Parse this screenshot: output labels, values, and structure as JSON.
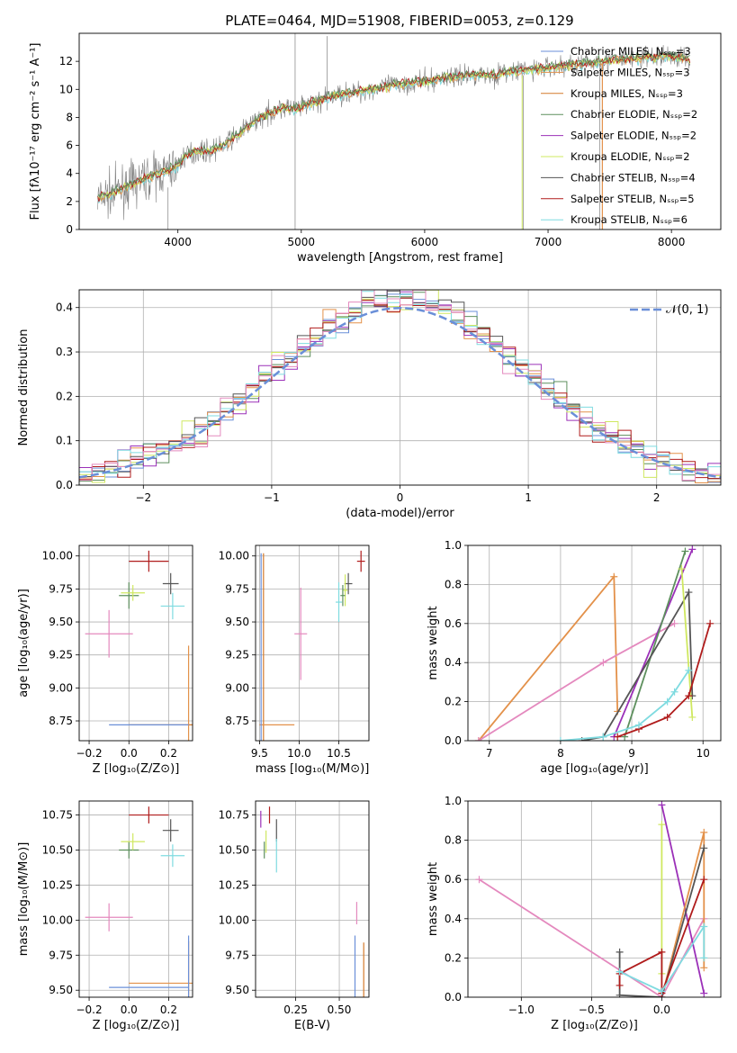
{
  "figure": {
    "title": "PLATE=0464, MJD=51908, FIBERID=0053, z=0.129"
  },
  "palette": {
    "data_gray": "#808080",
    "chabrier_miles": "#6a8fd8",
    "salpeter_miles": "#e3914a",
    "kroupa_miles": "#d47a2b",
    "chabrier_elodie": "#5d8f5d",
    "salpeter_elodie": "#9b30b8",
    "kroupa_elodie": "#cfe860",
    "chabrier_stelib": "#555555",
    "salpeter_stelib": "#b01c1c",
    "kroupa_stelib": "#7fdbe0",
    "pink": "#e489be",
    "normal_curve": "#6a8fd8"
  },
  "chart_data": [
    {
      "id": "spectrum",
      "type": "line",
      "xlabel": "wavelength [Angstrom, rest frame]",
      "ylabel": "Flux [fλ10⁻¹⁷ erg cm⁻² s⁻¹ A⁻¹]",
      "xlim": [
        3200,
        8400
      ],
      "ylim": [
        0,
        14
      ],
      "xticks": [
        "4000",
        "5000",
        "6000",
        "7000",
        "8000"
      ],
      "yticks": [
        "0",
        "2",
        "4",
        "6",
        "8",
        "10",
        "12"
      ],
      "grid": false,
      "legend_position": "upper-right",
      "legend": [
        {
          "label": "Chabrier MILES, Nₛₛₚ=3",
          "color": "chabrier_miles"
        },
        {
          "label": "Salpeter MILES, Nₛₛₚ=3",
          "color": "salpeter_miles"
        },
        {
          "label": "Kroupa MILES, Nₛₛₚ=3",
          "color": "kroupa_miles"
        },
        {
          "label": "Chabrier ELODIE, Nₛₛₚ=2",
          "color": "chabrier_elodie"
        },
        {
          "label": "Salpeter ELODIE, Nₛₛₚ=2",
          "color": "salpeter_elodie"
        },
        {
          "label": "Kroupa ELODIE, Nₛₛₚ=2",
          "color": "kroupa_elodie"
        },
        {
          "label": "Chabrier STELIB, Nₛₛₚ=4",
          "color": "chabrier_stelib"
        },
        {
          "label": "Salpeter STELIB, Nₛₛₚ=5",
          "color": "salpeter_stelib"
        },
        {
          "label": "Kroupa STELIB, Nₛₛₚ=6",
          "color": "kroupa_stelib"
        }
      ],
      "continuum": [
        [
          3350,
          2.2
        ],
        [
          3450,
          2.5
        ],
        [
          3550,
          2.9
        ],
        [
          3650,
          3.3
        ],
        [
          3750,
          3.7
        ],
        [
          3850,
          4.0
        ],
        [
          3950,
          4.3
        ],
        [
          4000,
          4.6
        ],
        [
          4050,
          5.2
        ],
        [
          4150,
          5.6
        ],
        [
          4250,
          5.6
        ],
        [
          4350,
          5.9
        ],
        [
          4450,
          6.5
        ],
        [
          4550,
          7.2
        ],
        [
          4650,
          7.9
        ],
        [
          4750,
          8.3
        ],
        [
          4850,
          8.7
        ],
        [
          4950,
          8.6
        ],
        [
          5050,
          8.9
        ],
        [
          5150,
          9.2
        ],
        [
          5250,
          9.5
        ],
        [
          5350,
          9.7
        ],
        [
          5450,
          9.8
        ],
        [
          5550,
          10.0
        ],
        [
          5650,
          10.1
        ],
        [
          5750,
          10.3
        ],
        [
          5850,
          10.4
        ],
        [
          5950,
          10.5
        ],
        [
          6050,
          10.6
        ],
        [
          6150,
          10.8
        ],
        [
          6250,
          10.9
        ],
        [
          6350,
          11.0
        ],
        [
          6450,
          11.1
        ],
        [
          6550,
          11.0
        ],
        [
          6650,
          11.2
        ],
        [
          6750,
          11.3
        ],
        [
          6850,
          11.4
        ],
        [
          6950,
          11.5
        ],
        [
          7050,
          11.6
        ],
        [
          7150,
          11.7
        ],
        [
          7250,
          11.8
        ],
        [
          7350,
          11.9
        ],
        [
          7450,
          12.0
        ],
        [
          7550,
          12.1
        ],
        [
          7650,
          12.2
        ],
        [
          7750,
          12.2
        ],
        [
          7850,
          12.3
        ],
        [
          7950,
          12.4
        ],
        [
          8050,
          12.3
        ],
        [
          8150,
          12.2
        ]
      ]
    },
    {
      "id": "residuals",
      "type": "step",
      "xlabel": "(data-model)/error",
      "ylabel": "Normed distribution",
      "xlim": [
        -2.5,
        2.5
      ],
      "ylim": [
        0,
        0.44
      ],
      "xticks": [
        "−2",
        "−1",
        "0",
        "1",
        "2"
      ],
      "yticks": [
        "0.0",
        "0.1",
        "0.2",
        "0.3",
        "0.4"
      ],
      "grid": true,
      "legend_position": "upper-right",
      "legend": [
        {
          "label": "𝒩(0, 1)",
          "color": "normal_curve"
        }
      ],
      "model": "N(0,1)"
    },
    {
      "id": "age_vs_z",
      "type": "errorbar",
      "xlabel": "Z [log₁₀(Z/Z⊙)]",
      "ylabel": "age  [log₁₀(age/yr)]",
      "xlim": [
        -0.25,
        0.32
      ],
      "ylim": [
        8.6,
        10.08
      ],
      "xticks": [
        "−0.2",
        "0.0",
        "0.2"
      ],
      "yticks": [
        "8.75",
        "9.00",
        "9.25",
        "9.50",
        "9.75",
        "10.00"
      ],
      "grid": true,
      "points": [
        {
          "x": 0.1,
          "y": 9.96,
          "xe": 0.1,
          "ye": 0.08,
          "c": "salpeter_stelib"
        },
        {
          "x": 0.21,
          "y": 9.79,
          "xe": 0.04,
          "ye": 0.08,
          "c": "chabrier_stelib"
        },
        {
          "x": 0.22,
          "y": 9.62,
          "xe": 0.06,
          "ye": 0.1,
          "c": "kroupa_stelib"
        },
        {
          "x": 0.0,
          "y": 9.7,
          "xe": 0.05,
          "ye": 0.1,
          "c": "chabrier_elodie"
        },
        {
          "x": 0.02,
          "y": 9.72,
          "xe": 0.06,
          "ye": 0.06,
          "c": "kroupa_elodie"
        },
        {
          "x": -0.1,
          "y": 9.41,
          "xe": 0.12,
          "ye": 0.18,
          "c": "pink"
        },
        {
          "x": 0.3,
          "y": 8.72,
          "xe": 0.3,
          "ye": 0.0,
          "c": "kroupa_miles"
        },
        {
          "x": 0.3,
          "y": 8.72,
          "xe": 0.0,
          "ye": 0.6,
          "c": "salpeter_miles"
        },
        {
          "x": 0.1,
          "y": 8.72,
          "xe": 0.2,
          "ye": 0.0,
          "c": "chabrier_miles"
        }
      ]
    },
    {
      "id": "age_vs_mass",
      "type": "errorbar",
      "xlabel": "mass [log₁₀(M/M⊙)]",
      "ylabel": "",
      "xlim": [
        9.45,
        10.88
      ],
      "ylim": [
        8.6,
        10.08
      ],
      "xticks": [
        "9.5",
        "10.0",
        "10.5"
      ],
      "yticks": [
        "8.75",
        "9.00",
        "9.25",
        "9.50",
        "9.75",
        "10.00"
      ],
      "grid": true,
      "points": [
        {
          "x": 10.78,
          "y": 9.96,
          "xe": 0.05,
          "ye": 0.08,
          "c": "salpeter_stelib"
        },
        {
          "x": 10.62,
          "y": 9.79,
          "xe": 0.05,
          "ye": 0.08,
          "c": "chabrier_stelib"
        },
        {
          "x": 10.5,
          "y": 9.65,
          "xe": 0.04,
          "ye": 0.15,
          "c": "kroupa_stelib"
        },
        {
          "x": 10.58,
          "y": 9.74,
          "xe": 0.03,
          "ye": 0.12,
          "c": "kroupa_elodie"
        },
        {
          "x": 10.55,
          "y": 9.7,
          "xe": 0.03,
          "ye": 0.08,
          "c": "chabrier_elodie"
        },
        {
          "x": 10.02,
          "y": 9.41,
          "xe": 0.08,
          "ye": 0.35,
          "c": "pink"
        },
        {
          "x": 9.55,
          "y": 8.72,
          "xe": 0.0,
          "ye": 1.3,
          "c": "kroupa_miles"
        },
        {
          "x": 9.72,
          "y": 8.72,
          "xe": 0.22,
          "ye": 0.0,
          "c": "salpeter_miles"
        },
        {
          "x": 9.52,
          "y": 8.72,
          "xe": 0.0,
          "ye": 1.3,
          "c": "chabrier_miles"
        }
      ]
    },
    {
      "id": "weight_vs_age",
      "type": "line",
      "xlabel": "age  [log₁₀(age/yr)]",
      "ylabel": "mass weight",
      "xlim": [
        6.7,
        10.25
      ],
      "ylim": [
        0,
        1
      ],
      "xticks": [
        "7",
        "8",
        "9",
        "10"
      ],
      "yticks": [
        "0.0",
        "0.2",
        "0.4",
        "0.6",
        "0.8",
        "1.0"
      ],
      "grid": true,
      "series": [
        {
          "c": "salpeter_miles",
          "x": [
            6.85,
            8.75,
            8.8
          ],
          "y": [
            0.0,
            0.84,
            0.15
          ]
        },
        {
          "c": "pink",
          "x": [
            6.85,
            8.6,
            9.6
          ],
          "y": [
            0.0,
            0.4,
            0.6
          ]
        },
        {
          "c": "salpeter_elodie",
          "x": [
            8.75,
            9.85
          ],
          "y": [
            0.02,
            0.98
          ]
        },
        {
          "c": "chabrier_elodie",
          "x": [
            8.9,
            9.75
          ],
          "y": [
            0.02,
            0.97
          ]
        },
        {
          "c": "chabrier_stelib",
          "x": [
            8.3,
            8.6,
            9.8,
            9.85
          ],
          "y": [
            0.0,
            0.02,
            0.76,
            0.23
          ]
        },
        {
          "c": "kroupa_elodie",
          "x": [
            9.7,
            9.85
          ],
          "y": [
            0.88,
            0.12
          ]
        },
        {
          "c": "salpeter_stelib",
          "x": [
            8.8,
            9.1,
            9.5,
            9.8,
            10.1
          ],
          "y": [
            0.02,
            0.06,
            0.12,
            0.23,
            0.6
          ]
        },
        {
          "c": "kroupa_stelib",
          "x": [
            8.0,
            8.6,
            9.1,
            9.5,
            9.6,
            9.8
          ],
          "y": [
            0.0,
            0.02,
            0.08,
            0.2,
            0.25,
            0.36
          ]
        }
      ]
    },
    {
      "id": "mass_vs_z",
      "type": "errorbar",
      "xlabel": "Z [log₁₀(Z/Z⊙)]",
      "ylabel": "mass [log₁₀(M/M⊙)]",
      "xlim": [
        -0.25,
        0.32
      ],
      "ylim": [
        9.45,
        10.85
      ],
      "xticks": [
        "−0.2",
        "0.0",
        "0.2"
      ],
      "yticks": [
        "9.50",
        "9.75",
        "10.00",
        "10.25",
        "10.50",
        "10.75"
      ],
      "grid": true,
      "points": [
        {
          "x": 0.1,
          "y": 10.75,
          "xe": 0.1,
          "ye": 0.06,
          "c": "salpeter_stelib"
        },
        {
          "x": 0.21,
          "y": 10.64,
          "xe": 0.04,
          "ye": 0.08,
          "c": "chabrier_stelib"
        },
        {
          "x": 0.22,
          "y": 10.46,
          "xe": 0.06,
          "ye": 0.08,
          "c": "kroupa_stelib"
        },
        {
          "x": 0.0,
          "y": 10.5,
          "xe": 0.05,
          "ye": 0.06,
          "c": "chabrier_elodie"
        },
        {
          "x": 0.02,
          "y": 10.56,
          "xe": 0.06,
          "ye": 0.06,
          "c": "kroupa_elodie"
        },
        {
          "x": -0.1,
          "y": 10.02,
          "xe": 0.12,
          "ye": 0.1,
          "c": "pink"
        },
        {
          "x": 0.3,
          "y": 9.55,
          "xe": 0.3,
          "ye": 0.0,
          "c": "salpeter_miles"
        },
        {
          "x": 0.3,
          "y": 9.55,
          "xe": 0.0,
          "ye": 0.3,
          "c": "kroupa_miles"
        },
        {
          "x": 0.1,
          "y": 9.52,
          "xe": 0.2,
          "ye": 0.0,
          "c": "chabrier_miles"
        },
        {
          "x": 0.3,
          "y": 9.52,
          "xe": 0.0,
          "ye": 0.37,
          "c": "chabrier_miles"
        }
      ]
    },
    {
      "id": "mass_vs_ebv",
      "type": "errorbar",
      "xlabel": "E(B-V)",
      "ylabel": "",
      "xlim": [
        0.02,
        0.67
      ],
      "ylim": [
        9.45,
        10.85
      ],
      "xticks": [
        "0.25",
        "0.50"
      ],
      "yticks": [
        "9.50",
        "9.75",
        "10.00",
        "10.25",
        "10.50",
        "10.75"
      ],
      "grid": true,
      "points": [
        {
          "x": 0.05,
          "y": 10.72,
          "xe": 0.0,
          "ye": 0.06,
          "c": "salpeter_elodie"
        },
        {
          "x": 0.07,
          "y": 10.5,
          "xe": 0.0,
          "ye": 0.06,
          "c": "chabrier_elodie"
        },
        {
          "x": 0.08,
          "y": 10.56,
          "xe": 0.0,
          "ye": 0.08,
          "c": "kroupa_elodie"
        },
        {
          "x": 0.1,
          "y": 10.75,
          "xe": 0.0,
          "ye": 0.06,
          "c": "salpeter_stelib"
        },
        {
          "x": 0.14,
          "y": 10.64,
          "xe": 0.0,
          "ye": 0.08,
          "c": "chabrier_stelib"
        },
        {
          "x": 0.14,
          "y": 10.46,
          "xe": 0.0,
          "ye": 0.12,
          "c": "kroupa_stelib"
        },
        {
          "x": 0.6,
          "y": 10.05,
          "xe": 0.0,
          "ye": 0.08,
          "c": "pink"
        },
        {
          "x": 0.59,
          "y": 9.62,
          "xe": 0.0,
          "ye": 0.27,
          "c": "chabrier_miles"
        },
        {
          "x": 0.64,
          "y": 9.6,
          "xe": 0.0,
          "ye": 0.24,
          "c": "kroupa_miles"
        }
      ]
    },
    {
      "id": "weight_vs_z",
      "type": "line",
      "xlabel": "Z [log₁₀(Z/Z⊙)]",
      "ylabel": "mass weight",
      "xlim": [
        -1.38,
        0.42
      ],
      "ylim": [
        0,
        1
      ],
      "xticks": [
        "−1.0",
        "−0.5",
        "0.0"
      ],
      "yticks": [
        "0.0",
        "0.2",
        "0.4",
        "0.6",
        "0.8",
        "1.0"
      ],
      "grid": true,
      "series": [
        {
          "c": "pink",
          "x": [
            -1.3,
            0.0,
            0.3
          ],
          "y": [
            0.6,
            0.0,
            0.4
          ]
        },
        {
          "c": "salpeter_elodie",
          "x": [
            0.0,
            0.3
          ],
          "y": [
            0.98,
            0.02
          ]
        },
        {
          "c": "kroupa_elodie",
          "x": [
            0.0,
            0.0
          ],
          "y": [
            0.88,
            0.12
          ]
        },
        {
          "c": "salpeter_miles",
          "x": [
            0.0,
            0.3,
            0.3
          ],
          "y": [
            0.0,
            0.84,
            0.15
          ]
        },
        {
          "c": "chabrier_stelib",
          "x": [
            -0.3,
            -0.3,
            0.0,
            0.3
          ],
          "y": [
            0.23,
            0.01,
            0.0,
            0.76
          ]
        },
        {
          "c": "salpeter_stelib",
          "x": [
            -0.3,
            -0.3,
            0.0,
            0.0,
            0.3
          ],
          "y": [
            0.06,
            0.12,
            0.23,
            0.02,
            0.6
          ]
        },
        {
          "c": "kroupa_stelib",
          "x": [
            -0.3,
            0.0,
            0.3,
            0.3
          ],
          "y": [
            0.13,
            0.03,
            0.36,
            0.2
          ]
        }
      ]
    }
  ]
}
